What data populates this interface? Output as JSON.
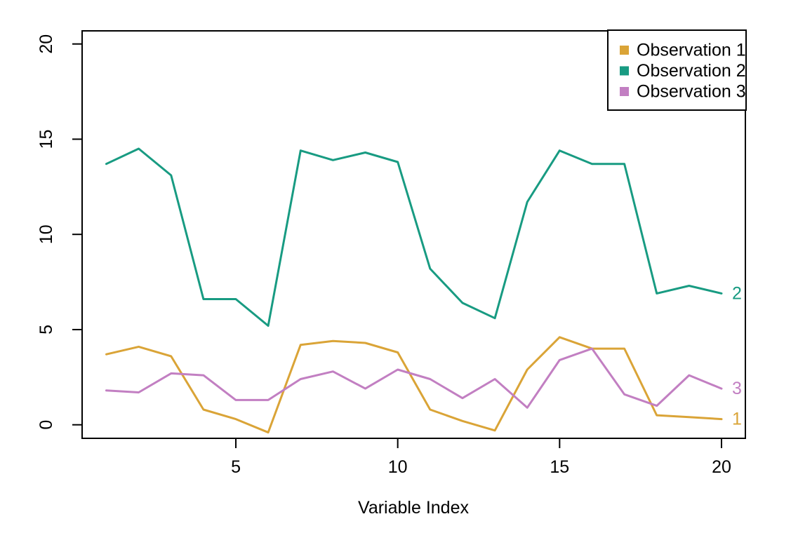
{
  "figure": {
    "background": "#ffffff",
    "axis_color": "#000000",
    "text_color": "#000000"
  },
  "chart_data": {
    "type": "line",
    "title": "",
    "xlabel": "Variable Index",
    "ylabel": "",
    "x": [
      1,
      2,
      3,
      4,
      5,
      6,
      7,
      8,
      9,
      10,
      11,
      12,
      13,
      14,
      15,
      16,
      17,
      18,
      19,
      20
    ],
    "series": [
      {
        "name": "Observation 1",
        "color": "#DAA437",
        "end_label": "1",
        "values": [
          3.7,
          4.1,
          3.6,
          0.8,
          0.3,
          -0.4,
          4.2,
          4.4,
          4.3,
          3.8,
          0.8,
          0.2,
          -0.3,
          2.9,
          4.6,
          4.0,
          4.0,
          0.5,
          0.4,
          0.3
        ]
      },
      {
        "name": "Observation 2",
        "color": "#189B82",
        "end_label": "2",
        "values": [
          13.7,
          14.5,
          13.1,
          6.6,
          6.6,
          5.2,
          14.4,
          13.9,
          14.3,
          13.8,
          8.2,
          6.4,
          5.6,
          11.7,
          14.4,
          13.7,
          13.7,
          6.9,
          7.3,
          6.9
        ]
      },
      {
        "name": "Observation 3",
        "color": "#C27FC2",
        "end_label": "3",
        "values": [
          1.8,
          1.7,
          2.7,
          2.6,
          1.3,
          1.3,
          2.4,
          2.8,
          1.9,
          2.9,
          2.4,
          1.4,
          2.4,
          0.9,
          3.4,
          4.0,
          1.6,
          1.0,
          2.6,
          1.9
        ]
      }
    ],
    "x_ticks": [
      5,
      10,
      15,
      20
    ],
    "y_ticks": [
      0,
      5,
      10,
      15,
      20
    ],
    "xlim": [
      0.24,
      20.76
    ],
    "ylim": [
      -0.8,
      20.8
    ],
    "grid": false,
    "legend": {
      "position": "top-right",
      "entries": [
        "Observation 1",
        "Observation 2",
        "Observation 3"
      ]
    }
  }
}
